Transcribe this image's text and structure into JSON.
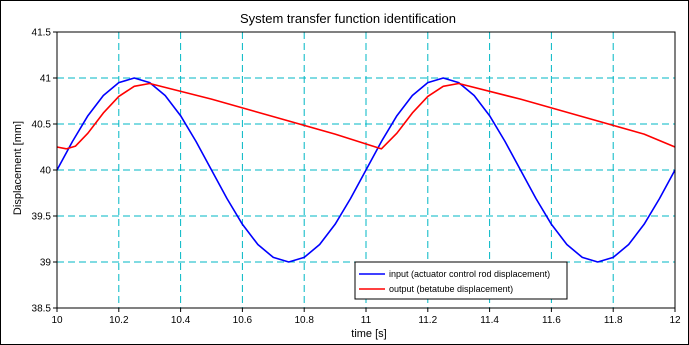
{
  "chart_data": {
    "type": "line",
    "title": "System transfer function identification",
    "xlabel": "time [s]",
    "ylabel": "Displacement [mm]",
    "xlim": [
      10,
      12
    ],
    "ylim": [
      38.5,
      41.5
    ],
    "x_ticks": [
      "10",
      "10.2",
      "10.4",
      "10.6",
      "10.8",
      "11",
      "11.2",
      "11.4",
      "11.6",
      "11.8",
      "12"
    ],
    "y_ticks": [
      "38.5",
      "39",
      "39.5",
      "40",
      "40.5",
      "41",
      "41.5"
    ],
    "grid": true,
    "legend_position": "bottom-center",
    "series": [
      {
        "name": "input (actuator control rod displacement)",
        "color": "#0000ff",
        "x": [
          10.0,
          10.05,
          10.1,
          10.15,
          10.2,
          10.25,
          10.3,
          10.35,
          10.4,
          10.45,
          10.5,
          10.55,
          10.6,
          10.65,
          10.7,
          10.75,
          10.8,
          10.85,
          10.9,
          10.95,
          11.0,
          11.05,
          11.1,
          11.15,
          11.2,
          11.25,
          11.3,
          11.35,
          11.4,
          11.45,
          11.5,
          11.55,
          11.6,
          11.65,
          11.7,
          11.75,
          11.8,
          11.85,
          11.9,
          11.95,
          12.0
        ],
        "y": [
          40.0,
          40.31,
          40.59,
          40.81,
          40.95,
          41.0,
          40.95,
          40.81,
          40.59,
          40.31,
          40.0,
          39.69,
          39.41,
          39.19,
          39.05,
          39.0,
          39.05,
          39.19,
          39.41,
          39.69,
          40.0,
          40.31,
          40.59,
          40.81,
          40.95,
          41.0,
          40.95,
          40.81,
          40.59,
          40.31,
          40.0,
          39.69,
          39.41,
          39.19,
          39.05,
          39.0,
          39.05,
          39.19,
          39.41,
          39.69,
          40.0
        ]
      },
      {
        "name": "output (betatube displacement)",
        "color": "#ff0000",
        "x": [
          10.0,
          10.03,
          10.06,
          10.1,
          10.15,
          10.2,
          10.25,
          10.3,
          10.5,
          10.7,
          10.9,
          11.05,
          11.1,
          11.15,
          11.2,
          11.25,
          11.3,
          11.5,
          11.7,
          11.9,
          12.0
        ],
        "y": [
          40.25,
          40.23,
          40.26,
          40.4,
          40.62,
          40.8,
          40.91,
          40.94,
          40.77,
          40.58,
          40.39,
          40.23,
          40.4,
          40.62,
          40.8,
          40.91,
          40.94,
          40.77,
          40.58,
          40.39,
          40.25
        ]
      }
    ]
  }
}
